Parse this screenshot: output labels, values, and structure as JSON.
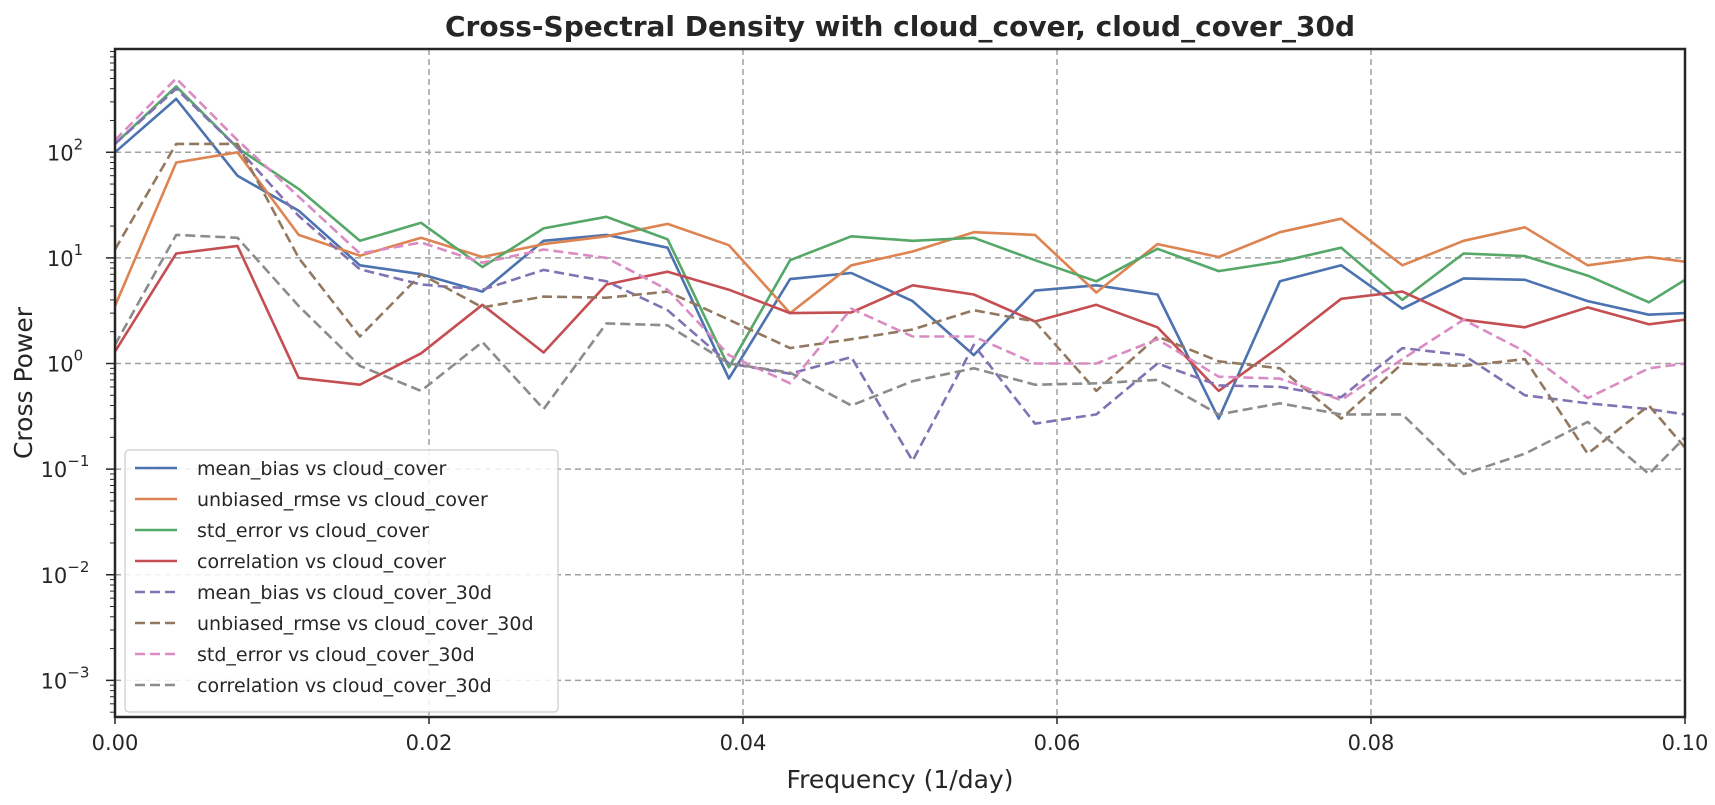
{
  "chart_data": {
    "type": "line",
    "title": "Cross-Spectral Density with cloud_cover, cloud_cover_30d",
    "xlabel": "Frequency (1/day)",
    "ylabel": "Cross Power",
    "xlim": [
      0.0,
      0.1
    ],
    "ylim": [
      0.00045,
      950
    ],
    "yscale": "log",
    "grid": true,
    "legend_position": "lower-left",
    "x_ticks": [
      "0.00",
      "0.02",
      "0.04",
      "0.06",
      "0.08",
      "0.10"
    ],
    "x_tick_values": [
      0.0,
      0.02,
      0.04,
      0.06,
      0.08,
      0.1
    ],
    "y_ticks": [
      {
        "value": 0.001,
        "exp": "−3"
      },
      {
        "value": 0.01,
        "exp": "−2"
      },
      {
        "value": 0.1,
        "exp": "−1"
      },
      {
        "value": 1,
        "exp": "0"
      },
      {
        "value": 10,
        "exp": "1"
      },
      {
        "value": 100,
        "exp": "2"
      }
    ],
    "y_tick_base": "10",
    "x": [
      0.0,
      0.0039,
      0.0078,
      0.0117,
      0.0156,
      0.0195,
      0.0234,
      0.0273,
      0.0313,
      0.0352,
      0.0391,
      0.043,
      0.0469,
      0.0508,
      0.0547,
      0.0586,
      0.0625,
      0.0664,
      0.0703,
      0.0742,
      0.0781,
      0.082,
      0.0859,
      0.0898,
      0.0938,
      0.0977,
      0.1
    ],
    "series": [
      {
        "name": "mean_bias vs cloud_cover",
        "color": "#4c72b0",
        "dash": "solid",
        "values": [
          100,
          320,
          60,
          28,
          8.5,
          7,
          4.8,
          14.5,
          16.5,
          12.5,
          0.72,
          6.3,
          7.2,
          3.9,
          1.2,
          4.9,
          5.5,
          4.5,
          0.3,
          6,
          8.5,
          3.3,
          6.4,
          6.2,
          3.9,
          2.9,
          3
        ]
      },
      {
        "name": "unbiased_rmse vs cloud_cover",
        "color": "#dd8452",
        "dash": "solid",
        "values": [
          3.5,
          80,
          100,
          16.5,
          10.5,
          15.5,
          10.2,
          13.5,
          16,
          21,
          13.2,
          3,
          8.5,
          11.5,
          17.5,
          16.5,
          4.7,
          13.5,
          10.2,
          17.5,
          23.5,
          8.5,
          14.5,
          19.5,
          8.5,
          10.2,
          9.2
        ]
      },
      {
        "name": "std_error vs cloud_cover",
        "color": "#55a868",
        "dash": "solid",
        "values": [
          120,
          420,
          110,
          45,
          14.5,
          21.5,
          8.2,
          19,
          24.5,
          15,
          0.92,
          9.5,
          16,
          14.5,
          15.5,
          9.5,
          6,
          12.2,
          7.5,
          9.2,
          12.5,
          4,
          11,
          10.4,
          6.8,
          3.8,
          6.2
        ]
      },
      {
        "name": "correlation vs cloud_cover",
        "color": "#c44e52",
        "dash": "solid",
        "values": [
          1.3,
          11,
          13,
          0.73,
          0.63,
          1.25,
          3.6,
          1.27,
          5.6,
          7.4,
          5,
          3,
          3.05,
          5.5,
          4.5,
          2.5,
          3.6,
          2.2,
          0.55,
          1.45,
          4.1,
          4.8,
          2.6,
          2.2,
          3.4,
          2.35,
          2.6
        ]
      },
      {
        "name": "mean_bias vs cloud_cover_30d",
        "color": "#8172b3",
        "dash": "dashed",
        "values": [
          120,
          400,
          110,
          25,
          7.8,
          5.6,
          5,
          7.7,
          6,
          3.2,
          1,
          0.8,
          1.15,
          0.12,
          1.5,
          0.27,
          0.33,
          1,
          0.62,
          0.6,
          0.48,
          1.4,
          1.2,
          0.5,
          0.42,
          0.37,
          0.33
        ]
      },
      {
        "name": "unbiased_rmse vs cloud_cover_30d",
        "color": "#937860",
        "dash": "dashed",
        "values": [
          12,
          120,
          120,
          10,
          1.8,
          7,
          3.4,
          4.3,
          4.2,
          4.8,
          2.6,
          1.4,
          1.7,
          2.1,
          3.2,
          2.5,
          0.55,
          1.8,
          1.05,
          0.9,
          0.3,
          1,
          0.95,
          1.1,
          0.14,
          0.4,
          0.16
        ]
      },
      {
        "name": "std_error vs cloud_cover_30d",
        "color": "#da8bc3",
        "dash": "dashed",
        "values": [
          130,
          500,
          130,
          38,
          11,
          14,
          9,
          12,
          10,
          5,
          1.2,
          0.65,
          3.3,
          1.8,
          1.8,
          1,
          1,
          1.7,
          0.75,
          0.72,
          0.45,
          1.1,
          2.6,
          1.3,
          0.47,
          0.9,
          1
        ]
      },
      {
        "name": "correlation vs cloud_cover_30d",
        "color": "#8c8c8c",
        "dash": "dashed",
        "values": [
          1.5,
          16.5,
          15.5,
          3.5,
          0.95,
          0.55,
          1.6,
          0.37,
          2.4,
          2.3,
          1,
          0.82,
          0.4,
          0.68,
          0.9,
          0.63,
          0.65,
          0.7,
          0.33,
          0.42,
          0.33,
          0.33,
          0.09,
          0.14,
          0.28,
          0.09,
          0.2
        ]
      }
    ]
  }
}
